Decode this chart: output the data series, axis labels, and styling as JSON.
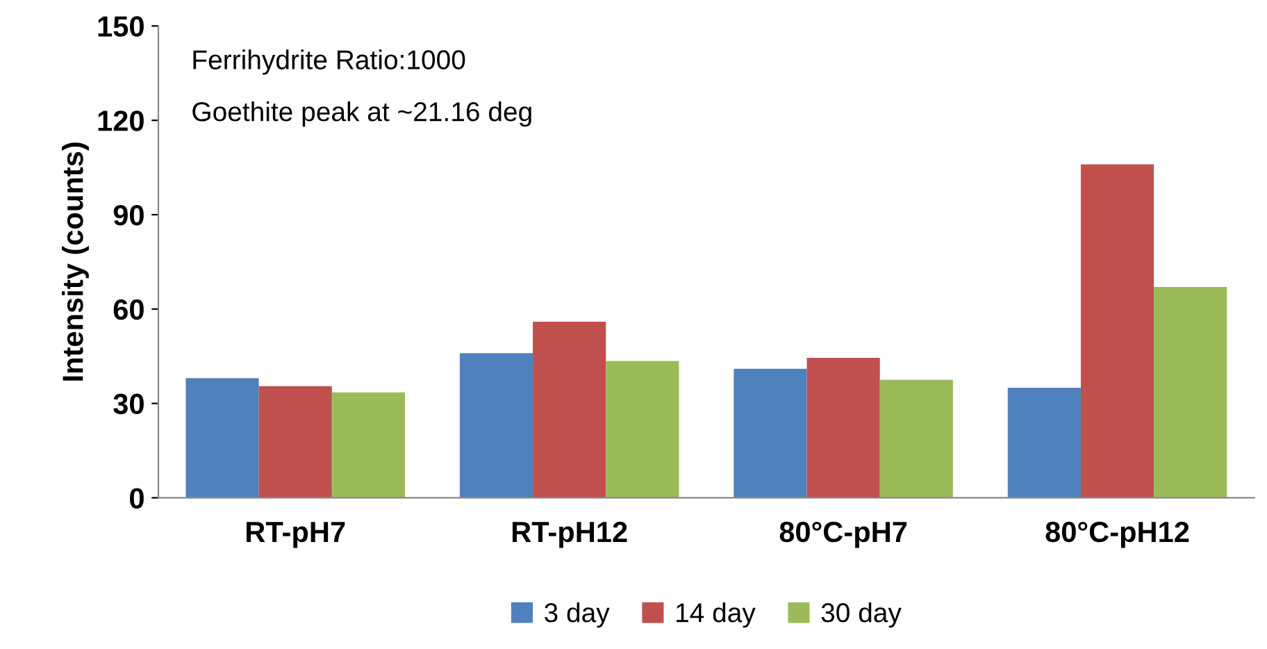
{
  "chart_data": {
    "type": "bar",
    "ylabel": "Intensity (counts)",
    "categories": [
      "RT-pH7",
      "RT-pH12",
      "80°C-pH7",
      "80°C-pH12"
    ],
    "series": [
      {
        "name": "3 day",
        "color": "#4f81bd",
        "values": [
          38,
          46,
          41,
          35
        ]
      },
      {
        "name": "14 day",
        "color": "#c0504d",
        "values": [
          35.5,
          56,
          44.5,
          106
        ]
      },
      {
        "name": "30 day",
        "color": "#9bbb59",
        "values": [
          33.5,
          43.5,
          37.5,
          67
        ]
      }
    ],
    "ylim": [
      0,
      150
    ],
    "yticks": [
      0,
      30,
      60,
      90,
      120,
      150
    ],
    "annotations": [
      "Ferrihydrite Ratio:1000",
      "Goethite peak at ~21.16 deg"
    ],
    "grid": false,
    "legend": "bottom"
  }
}
